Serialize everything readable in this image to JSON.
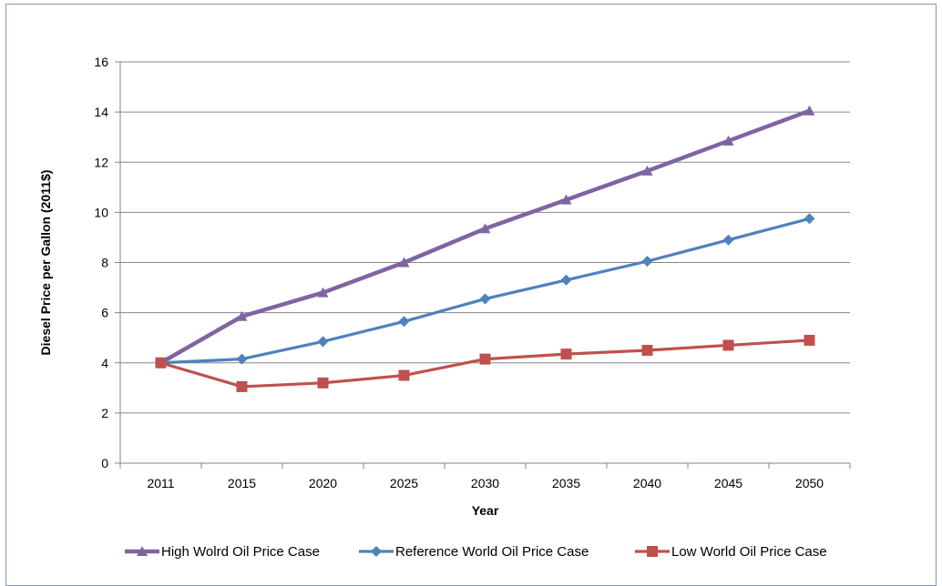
{
  "chart_data": {
    "type": "line",
    "title": "",
    "xlabel": "Year",
    "ylabel": "Diesel Price per Gallon (2011$)",
    "categories": [
      "2011",
      "2015",
      "2020",
      "2025",
      "2030",
      "2035",
      "2040",
      "2045",
      "2050"
    ],
    "ylim": [
      0,
      16
    ],
    "yticks": [
      0,
      2,
      4,
      6,
      8,
      10,
      12,
      14,
      16
    ],
    "grid": "horizontal",
    "legend_position": "bottom",
    "series": [
      {
        "name": "High Wolrd Oil Price Case",
        "color": "#8064a2",
        "marker": "triangle",
        "values": [
          4.0,
          5.85,
          6.8,
          8.0,
          9.35,
          10.5,
          11.65,
          12.85,
          14.05
        ]
      },
      {
        "name": "Reference World Oil Price Case",
        "color": "#4f81bd",
        "marker": "diamond",
        "values": [
          4.0,
          4.15,
          4.85,
          5.65,
          6.55,
          7.3,
          8.05,
          8.9,
          9.75
        ]
      },
      {
        "name": "Low World Oil Price Case",
        "color": "#c0504d",
        "marker": "square",
        "values": [
          4.0,
          3.05,
          3.2,
          3.5,
          4.15,
          4.35,
          4.5,
          4.7,
          4.9
        ]
      }
    ]
  }
}
